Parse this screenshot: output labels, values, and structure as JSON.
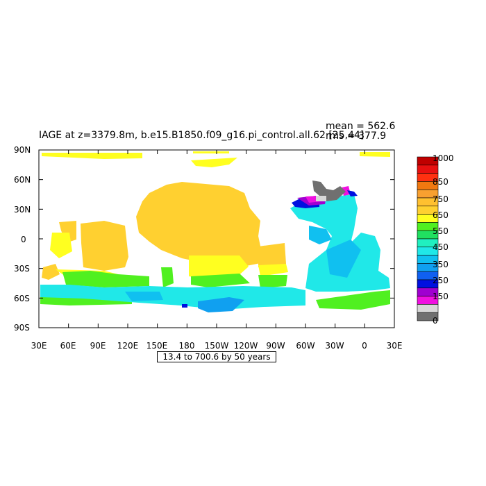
{
  "plot": {
    "title": "IAGE at z=3379.8m, b.e15.B1850.f09_g16.pi_control.all.62 [25,44]",
    "mean_label": "mean = 562.6",
    "rms_label": "rms = 377.9",
    "subtitle": "13.4 to 700.6 by 50 years"
  },
  "axes": {
    "y_ticks": [
      "90N",
      "60N",
      "30N",
      "0",
      "30S",
      "60S",
      "90S"
    ],
    "x_ticks": [
      "30E",
      "60E",
      "90E",
      "120E",
      "150E",
      "180",
      "150W",
      "120W",
      "90W",
      "60W",
      "30W",
      "0",
      "30E"
    ]
  },
  "colorbar": {
    "labels": [
      "1000",
      "850",
      "750",
      "650",
      "550",
      "450",
      "350",
      "250",
      "150",
      "0"
    ],
    "colors": [
      "#c00000",
      "#e81010",
      "#ff3010",
      "#f07810",
      "#f8a030",
      "#ffc030",
      "#ffd030",
      "#ffff20",
      "#50f020",
      "#20e060",
      "#20f0c0",
      "#20e8e8",
      "#10c0f0",
      "#10a0f0",
      "#1060f0",
      "#0010e0",
      "#a000d0",
      "#f010e0",
      "#d8d8d8",
      "#707070"
    ]
  },
  "map_colors": {
    "orange": "#ffd030",
    "yellow": "#ffff20",
    "green": "#50f020",
    "light_green": "#20e060",
    "cyan": "#20e8e8",
    "sky": "#10c0f0",
    "blue": "#10a0f0",
    "deep_blue": "#0010e0",
    "purple": "#a000d0",
    "magenta": "#f010e0",
    "gray": "#707070",
    "light_gray": "#d8d8d8"
  }
}
